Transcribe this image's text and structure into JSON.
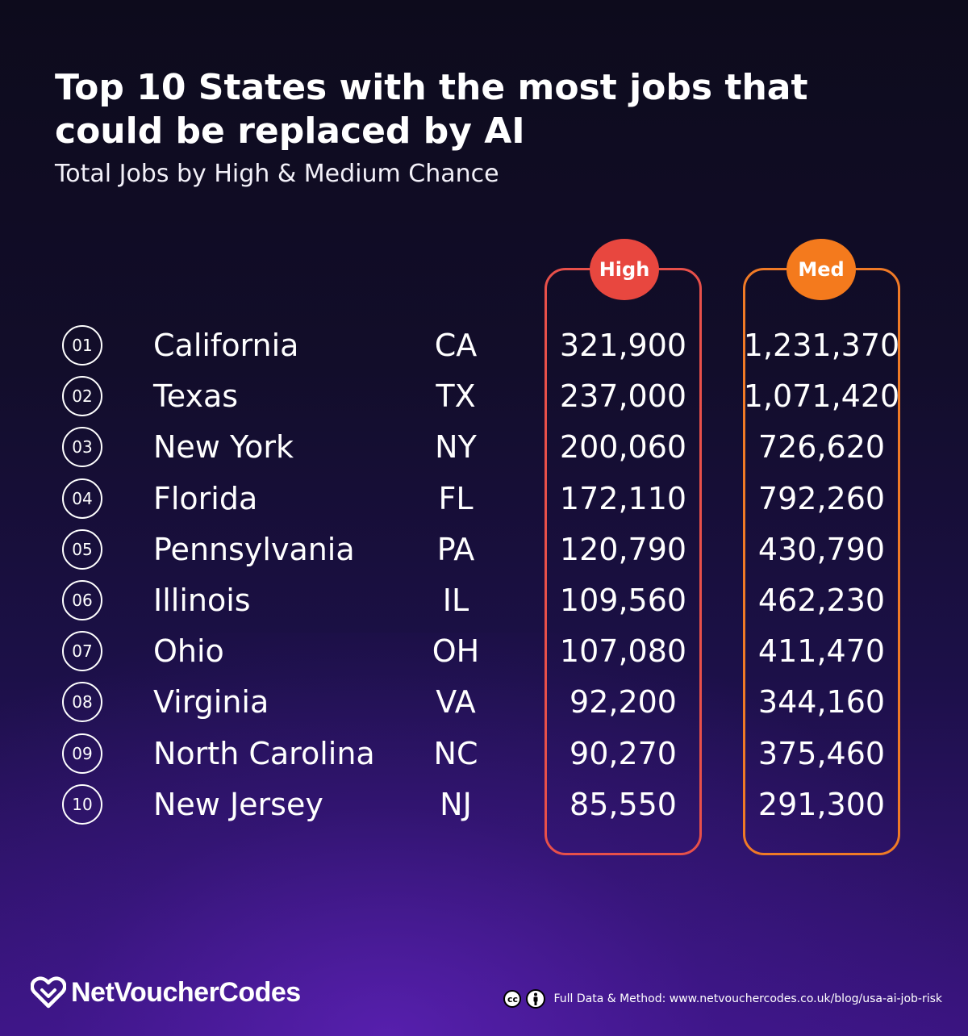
{
  "title": "Top 10 States with the most jobs that could be replaced by AI",
  "subtitle": "Total Jobs by High & Medium Chance",
  "badges": {
    "high": "High",
    "med": "Med"
  },
  "colors": {
    "high": "#e8473f",
    "med": "#f47a1d",
    "background": "#120d2a"
  },
  "chart_data": {
    "type": "table",
    "title": "Top 10 States with the most jobs that could be replaced by AI",
    "subtitle": "Total Jobs by High & Medium Chance",
    "columns": [
      "Rank",
      "State",
      "Abbreviation",
      "High",
      "Med"
    ],
    "rows": [
      {
        "rank": "01",
        "state": "California",
        "abbr": "CA",
        "high": "321,900",
        "med": "1,231,370"
      },
      {
        "rank": "02",
        "state": "Texas",
        "abbr": "TX",
        "high": "237,000",
        "med": "1,071,420"
      },
      {
        "rank": "03",
        "state": "New York",
        "abbr": "NY",
        "high": "200,060",
        "med": "726,620"
      },
      {
        "rank": "04",
        "state": "Florida",
        "abbr": "FL",
        "high": "172,110",
        "med": "792,260"
      },
      {
        "rank": "05",
        "state": "Pennsylvania",
        "abbr": "PA",
        "high": "120,790",
        "med": "430,790"
      },
      {
        "rank": "06",
        "state": "Illinois",
        "abbr": "IL",
        "high": "109,560",
        "med": "462,230"
      },
      {
        "rank": "07",
        "state": "Ohio",
        "abbr": "OH",
        "high": "107,080",
        "med": "411,470"
      },
      {
        "rank": "08",
        "state": "Virginia",
        "abbr": "VA",
        "high": "92,200",
        "med": "344,160"
      },
      {
        "rank": "09",
        "state": "North Carolina",
        "abbr": "NC",
        "high": "90,270",
        "med": "375,460"
      },
      {
        "rank": "10",
        "state": "New Jersey",
        "abbr": "NJ",
        "high": "85,550",
        "med": "291,300"
      }
    ]
  },
  "footer": {
    "logo_text": "NetVoucherCodes",
    "logo_icon": "heart-icon",
    "license_icons": [
      "cc-icon",
      "attribution-icon"
    ],
    "cc_label": "cc",
    "source": "Full Data & Method: www.netvouchercodes.co.uk/blog/usa-ai-job-risk"
  }
}
